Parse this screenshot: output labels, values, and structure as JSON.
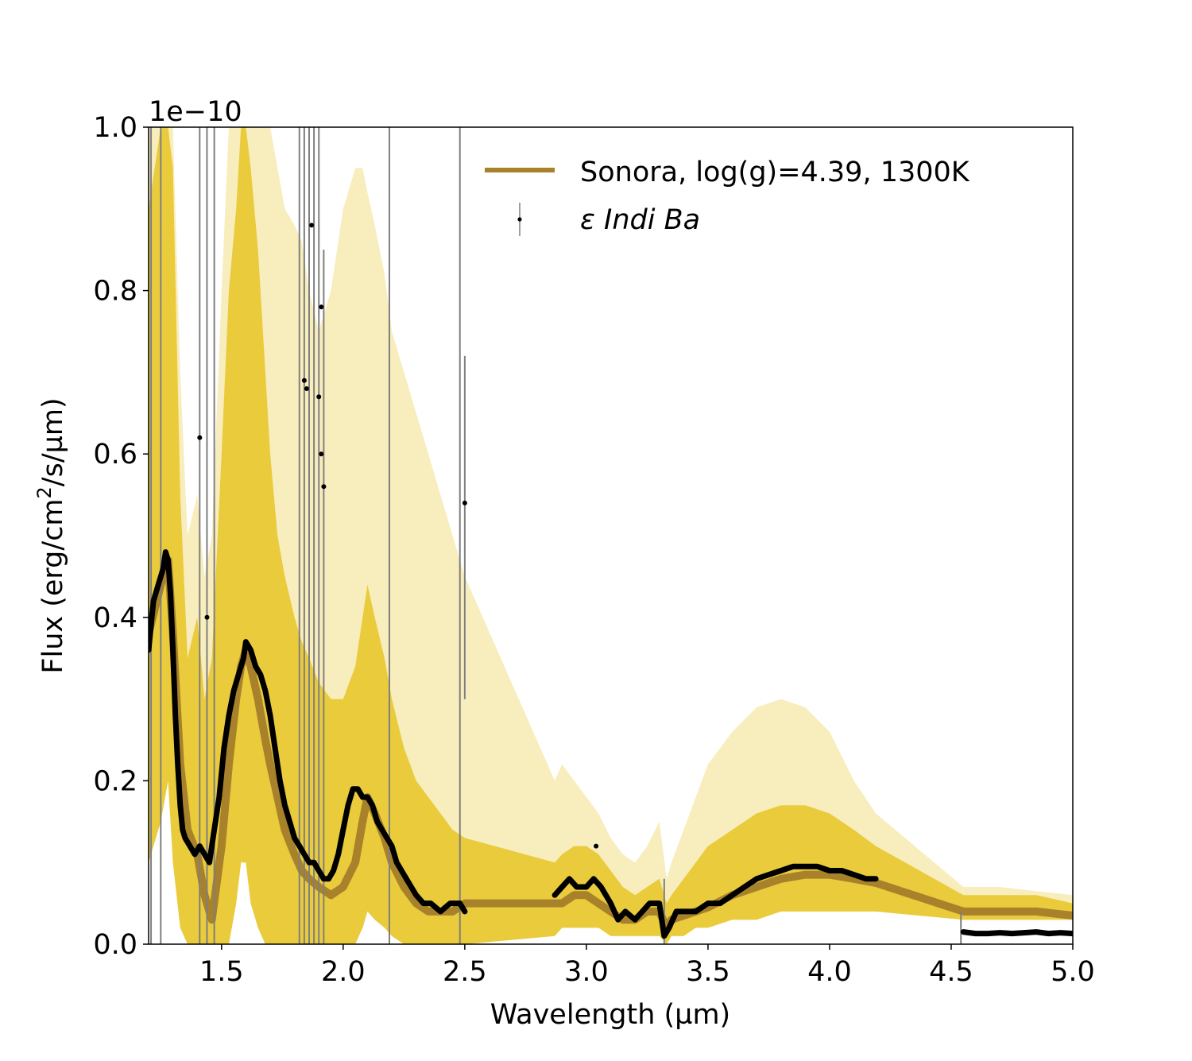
{
  "chart_data": {
    "type": "line",
    "xlabel": "Wavelength (µm)",
    "ylabel_prefix": "Flux (erg/cm",
    "ylabel_sup": "2",
    "ylabel_suffix": "/s/µm)",
    "y_offset_text": "1e−10",
    "xlim": [
      1.2,
      5.0
    ],
    "ylim": [
      0.0,
      1.0
    ],
    "y_scale_factor": 1e-10,
    "x_ticks": [
      "1.5",
      "2.0",
      "2.5",
      "3.0",
      "3.5",
      "4.0",
      "4.5",
      "5.0"
    ],
    "y_ticks": [
      "0.0",
      "0.2",
      "0.4",
      "0.6",
      "0.8",
      "1.0"
    ],
    "legend_location": "top-right",
    "colors": {
      "model_median": "#a8822a",
      "model_band": "#e8c72e",
      "model_faint": "#f5e7a6",
      "data_points": "#000000",
      "errorbars": "#7f7f7f"
    },
    "series": [
      {
        "name": "Sonora, log(g)=4.39, 1300K",
        "kind": "model",
        "x": [
          1.2,
          1.25,
          1.28,
          1.3,
          1.33,
          1.36,
          1.4,
          1.43,
          1.46,
          1.5,
          1.53,
          1.56,
          1.58,
          1.6,
          1.62,
          1.65,
          1.68,
          1.7,
          1.73,
          1.76,
          1.8,
          1.83,
          1.86,
          1.9,
          1.95,
          2.0,
          2.05,
          2.08,
          2.1,
          2.13,
          2.17,
          2.2,
          2.25,
          2.3,
          2.35,
          2.4,
          2.45,
          2.5,
          2.87,
          2.9,
          2.95,
          3.0,
          3.05,
          3.1,
          3.15,
          3.2,
          3.25,
          3.3,
          3.33,
          3.35,
          3.4,
          3.45,
          3.5,
          3.6,
          3.7,
          3.8,
          3.9,
          4.0,
          4.1,
          4.19,
          4.55,
          4.7,
          4.85,
          5.0
        ],
        "y": [
          0.38,
          0.44,
          0.47,
          0.38,
          0.22,
          0.14,
          0.11,
          0.06,
          0.03,
          0.12,
          0.22,
          0.3,
          0.34,
          0.36,
          0.34,
          0.3,
          0.25,
          0.22,
          0.18,
          0.14,
          0.11,
          0.09,
          0.08,
          0.07,
          0.06,
          0.07,
          0.1,
          0.15,
          0.18,
          0.16,
          0.13,
          0.1,
          0.07,
          0.05,
          0.04,
          0.04,
          0.04,
          0.05,
          0.05,
          0.05,
          0.06,
          0.06,
          0.05,
          0.04,
          0.03,
          0.03,
          0.04,
          0.04,
          0.02,
          0.03,
          0.035,
          0.04,
          0.045,
          0.06,
          0.07,
          0.08,
          0.085,
          0.085,
          0.08,
          0.075,
          0.04,
          0.04,
          0.04,
          0.035
        ],
        "band_upper": [
          0.9,
          1.0,
          1.0,
          0.95,
          0.55,
          0.35,
          0.4,
          0.3,
          0.35,
          0.6,
          0.8,
          0.9,
          1.0,
          1.0,
          0.95,
          0.85,
          0.7,
          0.6,
          0.5,
          0.45,
          0.4,
          0.37,
          0.35,
          0.32,
          0.3,
          0.3,
          0.34,
          0.4,
          0.44,
          0.4,
          0.35,
          0.3,
          0.24,
          0.2,
          0.18,
          0.16,
          0.14,
          0.13,
          0.1,
          0.11,
          0.12,
          0.12,
          0.11,
          0.09,
          0.07,
          0.06,
          0.07,
          0.08,
          0.05,
          0.06,
          0.08,
          0.1,
          0.12,
          0.14,
          0.16,
          0.17,
          0.17,
          0.16,
          0.14,
          0.12,
          0.06,
          0.06,
          0.06,
          0.05
        ],
        "band_lower": [
          0.1,
          0.15,
          0.2,
          0.1,
          0.02,
          0.0,
          0.0,
          0.0,
          0.0,
          0.0,
          0.0,
          0.05,
          0.1,
          0.1,
          0.05,
          0.02,
          0.0,
          0.0,
          0.0,
          0.0,
          0.0,
          0.0,
          0.0,
          0.0,
          0.0,
          0.0,
          0.0,
          0.02,
          0.04,
          0.03,
          0.02,
          0.01,
          0.0,
          0.0,
          0.0,
          0.0,
          0.0,
          0.0,
          0.01,
          0.02,
          0.02,
          0.02,
          0.02,
          0.01,
          0.01,
          0.01,
          0.01,
          0.01,
          0.0,
          0.01,
          0.01,
          0.02,
          0.02,
          0.03,
          0.03,
          0.04,
          0.04,
          0.04,
          0.04,
          0.04,
          0.03,
          0.03,
          0.03,
          0.03
        ],
        "faint_upper": [
          1.0,
          1.0,
          1.0,
          1.0,
          0.7,
          0.5,
          0.55,
          0.45,
          0.5,
          0.8,
          1.0,
          1.0,
          1.0,
          1.0,
          1.0,
          1.0,
          1.0,
          1.0,
          0.95,
          0.9,
          0.88,
          0.86,
          0.8,
          0.75,
          0.8,
          0.9,
          0.95,
          0.95,
          0.92,
          0.88,
          0.82,
          0.75,
          0.7,
          0.65,
          0.6,
          0.55,
          0.5,
          0.45,
          0.2,
          0.22,
          0.2,
          0.18,
          0.16,
          0.13,
          0.11,
          0.1,
          0.12,
          0.15,
          0.08,
          0.1,
          0.14,
          0.18,
          0.22,
          0.26,
          0.29,
          0.3,
          0.29,
          0.26,
          0.2,
          0.16,
          0.07,
          0.07,
          0.065,
          0.06
        ]
      },
      {
        "name": "ε Indi Ba",
        "kind": "data",
        "segments": [
          {
            "x": [
              1.2,
              1.22,
              1.24,
              1.26,
              1.27,
              1.28,
              1.29,
              1.3,
              1.31,
              1.32,
              1.33,
              1.34,
              1.35,
              1.37,
              1.39,
              1.41,
              1.43,
              1.45,
              1.47,
              1.49,
              1.51,
              1.53,
              1.55,
              1.57,
              1.59,
              1.6,
              1.62,
              1.64,
              1.66,
              1.68,
              1.7,
              1.72,
              1.74,
              1.76,
              1.78,
              1.8,
              1.82,
              1.84,
              1.86,
              1.88,
              1.9,
              1.92,
              1.94,
              1.96,
              1.98,
              2.0,
              2.02,
              2.04,
              2.06,
              2.08,
              2.1,
              2.12,
              2.14,
              2.16,
              2.18,
              2.2,
              2.22,
              2.24,
              2.26,
              2.28,
              2.3,
              2.33,
              2.36,
              2.4,
              2.44,
              2.48,
              2.5
            ],
            "y": [
              0.36,
              0.42,
              0.44,
              0.46,
              0.48,
              0.47,
              0.43,
              0.36,
              0.28,
              0.22,
              0.17,
              0.14,
              0.13,
              0.12,
              0.11,
              0.12,
              0.11,
              0.1,
              0.14,
              0.18,
              0.24,
              0.28,
              0.31,
              0.33,
              0.35,
              0.37,
              0.36,
              0.34,
              0.33,
              0.31,
              0.28,
              0.24,
              0.2,
              0.17,
              0.15,
              0.13,
              0.12,
              0.11,
              0.1,
              0.1,
              0.09,
              0.08,
              0.08,
              0.09,
              0.11,
              0.14,
              0.17,
              0.19,
              0.19,
              0.18,
              0.18,
              0.17,
              0.15,
              0.14,
              0.13,
              0.12,
              0.1,
              0.09,
              0.08,
              0.07,
              0.06,
              0.05,
              0.05,
              0.04,
              0.05,
              0.05,
              0.04
            ]
          },
          {
            "x": [
              2.87,
              2.9,
              2.93,
              2.96,
              3.0,
              3.03,
              3.06,
              3.1,
              3.13,
              3.16,
              3.2,
              3.23,
              3.26,
              3.3,
              3.32,
              3.34,
              3.37,
              3.4,
              3.45,
              3.5,
              3.55,
              3.6,
              3.65,
              3.7,
              3.75,
              3.8,
              3.85,
              3.9,
              3.95,
              4.0,
              4.05,
              4.1,
              4.15,
              4.19
            ],
            "y": [
              0.06,
              0.07,
              0.08,
              0.07,
              0.07,
              0.08,
              0.07,
              0.05,
              0.03,
              0.04,
              0.03,
              0.04,
              0.05,
              0.05,
              0.01,
              0.02,
              0.04,
              0.04,
              0.04,
              0.05,
              0.05,
              0.06,
              0.07,
              0.08,
              0.085,
              0.09,
              0.095,
              0.095,
              0.095,
              0.09,
              0.09,
              0.085,
              0.08,
              0.08
            ]
          },
          {
            "x": [
              4.55,
              4.6,
              4.65,
              4.7,
              4.75,
              4.8,
              4.85,
              4.9,
              4.95,
              5.0
            ],
            "y": [
              0.015,
              0.013,
              0.013,
              0.014,
              0.013,
              0.014,
              0.015,
              0.013,
              0.014,
              0.013
            ]
          }
        ],
        "errorbars": [
          {
            "x": 1.21,
            "low": 0.0,
            "high": 1.0
          },
          {
            "x": 1.25,
            "low": 0.0,
            "high": 1.0
          },
          {
            "x": 1.41,
            "low": 0.0,
            "high": 1.0
          },
          {
            "x": 1.44,
            "low": 0.0,
            "high": 1.0
          },
          {
            "x": 1.47,
            "low": 0.0,
            "high": 1.0
          },
          {
            "x": 1.82,
            "low": 0.0,
            "high": 1.0
          },
          {
            "x": 1.84,
            "low": 0.0,
            "high": 1.0
          },
          {
            "x": 1.86,
            "low": 0.0,
            "high": 1.0
          },
          {
            "x": 1.88,
            "low": 0.0,
            "high": 1.0
          },
          {
            "x": 1.9,
            "low": 0.0,
            "high": 1.0
          },
          {
            "x": 1.92,
            "low": 0.0,
            "high": 0.85
          },
          {
            "x": 2.19,
            "low": 0.0,
            "high": 1.0
          },
          {
            "x": 2.48,
            "low": 0.0,
            "high": 1.0
          },
          {
            "x": 2.5,
            "low": 0.3,
            "high": 0.72
          },
          {
            "x": 3.32,
            "low": 0.0,
            "high": 0.08
          },
          {
            "x": 4.54,
            "low": 0.0,
            "high": 0.04
          }
        ],
        "outliers": [
          {
            "x": 1.41,
            "y": 0.62
          },
          {
            "x": 1.44,
            "y": 0.4
          },
          {
            "x": 1.84,
            "y": 0.69
          },
          {
            "x": 1.85,
            "y": 0.68
          },
          {
            "x": 1.87,
            "y": 0.88
          },
          {
            "x": 1.9,
            "y": 0.67
          },
          {
            "x": 1.91,
            "y": 0.78
          },
          {
            "x": 1.91,
            "y": 0.6
          },
          {
            "x": 1.92,
            "y": 0.56
          },
          {
            "x": 2.5,
            "y": 0.54
          },
          {
            "x": 3.04,
            "y": 0.12
          }
        ]
      }
    ]
  }
}
